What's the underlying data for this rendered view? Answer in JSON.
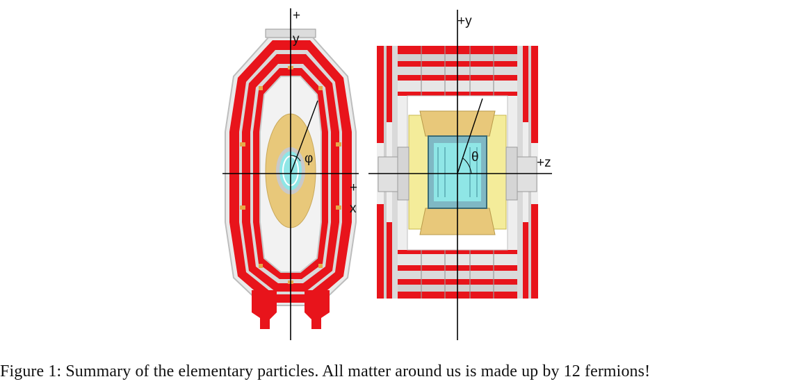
{
  "figure": {
    "caption": "Figure 1: Summary of the elementary particles. All matter around us is made up by 12 fermions!",
    "transverse_view": {
      "axis_y_plus": "+",
      "axis_y_name": "y",
      "axis_x_plus": "+",
      "axis_x_name": "x",
      "angle_symbol": "φ"
    },
    "longitudinal_view": {
      "axis_y_label": "+y",
      "axis_z_label": "+z",
      "angle_symbol": "θ"
    }
  },
  "colors": {
    "muon_red": "#e8141b",
    "iron_grey": "#c8c8c8",
    "hcal_tan": "#e8c87a",
    "ecal_yellow": "#f4ec9a",
    "tracker_cyan": "#8fe6e6",
    "axis_black": "#000000"
  }
}
